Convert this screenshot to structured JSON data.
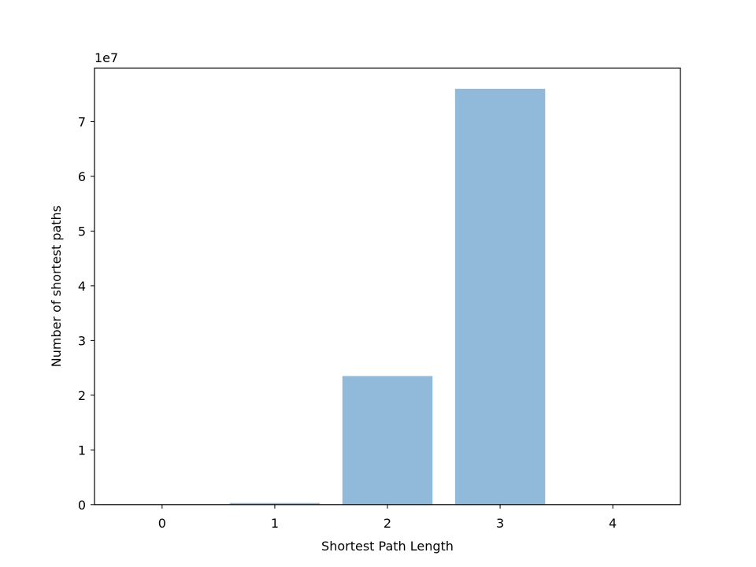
{
  "chart_data": {
    "type": "bar",
    "categories": [
      "0",
      "1",
      "2",
      "3",
      "4"
    ],
    "x": [
      0,
      1,
      2,
      3,
      4
    ],
    "values": [
      0,
      300000,
      23500000,
      76000000,
      0
    ],
    "xlabel": "Shortest Path Length",
    "ylabel": "Number of shortest paths",
    "y_offset_label": "1e7",
    "y_ticks": [
      0,
      10000000,
      20000000,
      30000000,
      40000000,
      50000000,
      60000000,
      70000000
    ],
    "y_tick_labels": [
      "0",
      "1",
      "2",
      "3",
      "4",
      "5",
      "6",
      "7"
    ],
    "xlim": [
      -0.6,
      4.6
    ],
    "ylim": [
      0,
      79800000
    ],
    "bar_color": "#91b9da",
    "grid": false,
    "legend": "none"
  }
}
